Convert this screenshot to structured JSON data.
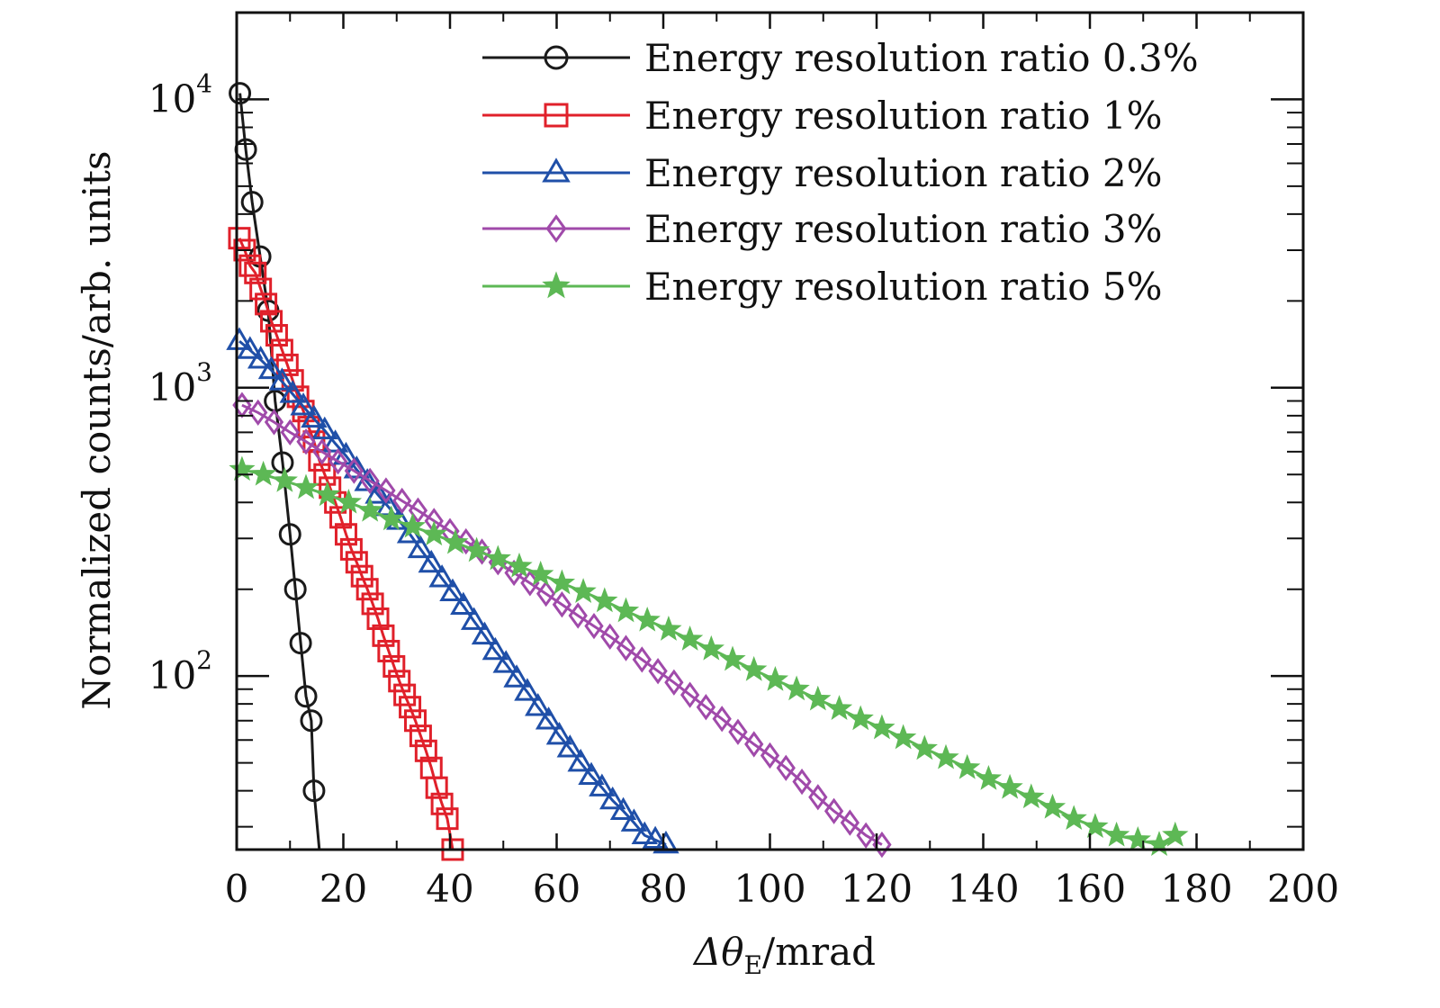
{
  "chart_data": {
    "type": "line",
    "xlabel": "Δθ",
    "xlabel_sub": "E",
    "xlabel_unit": "/mrad",
    "ylabel": "Normalized counts/arb. units",
    "xlim": [
      0,
      200
    ],
    "ylim": [
      25,
      20000
    ],
    "y_scale": "log",
    "x_ticks": [
      0,
      20,
      40,
      60,
      80,
      100,
      120,
      140,
      160,
      180,
      200
    ],
    "y_ticks": [
      {
        "value": 100,
        "base": "10",
        "exp": "2"
      },
      {
        "value": 1000,
        "base": "10",
        "exp": "3"
      },
      {
        "value": 10000,
        "base": "10",
        "exp": "4"
      }
    ],
    "grid": false,
    "legend_position": "top-right",
    "series": [
      {
        "name": "Energy resolution ratio 0.3%",
        "color": "#1a1a1a",
        "marker": "circle",
        "x": [
          0.6,
          1.7,
          2.9,
          4.4,
          5.9,
          7.2,
          8.6,
          10.0,
          11.0,
          12.0,
          13.0,
          14.0,
          14.5
        ],
        "y": [
          10500,
          6700,
          4400,
          2850,
          1850,
          900,
          550,
          310,
          200,
          130,
          85,
          70,
          40
        ],
        "tail_x": [
          14.5,
          15.5,
          200
        ],
        "tail_y": [
          40,
          25,
          25
        ]
      },
      {
        "name": "Energy resolution ratio 1%",
        "color": "#e0202a",
        "marker": "square",
        "x": [
          0.5,
          1.5,
          2.5,
          3.5,
          4.5,
          5.5,
          6.5,
          7.5,
          8.5,
          9.5,
          10.5,
          11.5,
          12.5,
          13.5,
          14.5,
          15.5,
          16.5,
          17.5,
          18.5,
          19.5,
          20.5,
          21.5,
          22.5,
          23.5,
          24.5,
          25.5,
          26.5,
          27.5,
          28.5,
          29.5,
          30.5,
          31.5,
          32.5,
          33.5,
          34.5,
          35.5,
          36.5,
          37.5,
          38.5,
          39.5,
          40.5
        ],
        "y": [
          3300,
          3000,
          2650,
          2500,
          2200,
          1950,
          1700,
          1520,
          1350,
          1200,
          1060,
          930,
          830,
          730,
          650,
          560,
          500,
          450,
          400,
          355,
          310,
          275,
          248,
          222,
          200,
          178,
          158,
          138,
          122,
          108,
          96,
          86,
          78,
          70,
          62,
          55,
          48,
          41,
          36,
          32,
          25
        ],
        "tail_x": [
          40.5,
          200
        ],
        "tail_y": [
          25,
          25
        ]
      },
      {
        "name": "Energy resolution ratio 2%",
        "color": "#1f4fa8",
        "marker": "triangle",
        "x": [
          0.5,
          2.5,
          4.5,
          6.5,
          8.5,
          10.5,
          12.5,
          14.5,
          16.5,
          18.5,
          20.5,
          22.5,
          24.5,
          26.5,
          28.5,
          30.5,
          32.5,
          34.5,
          36.5,
          38.5,
          40.5,
          42.5,
          44.5,
          46.5,
          48.5,
          50.5,
          52.5,
          54.5,
          56.5,
          58.5,
          60.5,
          62.5,
          64.5,
          66.5,
          68.5,
          70.5,
          72.5,
          74.5,
          76.5,
          78.5,
          80.5
        ],
        "y": [
          1450,
          1350,
          1250,
          1150,
          1050,
          950,
          860,
          780,
          710,
          640,
          580,
          520,
          470,
          425,
          385,
          345,
          310,
          275,
          245,
          218,
          195,
          175,
          155,
          138,
          122,
          110,
          98,
          88,
          78,
          70,
          62,
          56,
          50,
          45,
          41,
          37,
          34,
          31,
          28,
          27,
          26
        ],
        "tail_x": [
          80.5,
          200
        ],
        "tail_y": [
          25,
          25
        ]
      },
      {
        "name": "Energy resolution ratio 3%",
        "color": "#a04aaa",
        "marker": "diamond",
        "x": [
          1,
          4,
          7,
          10,
          13,
          16,
          19,
          22,
          25,
          28,
          31,
          34,
          37,
          40,
          43,
          46,
          49,
          52,
          55,
          58,
          61,
          64,
          67,
          70,
          73,
          76,
          79,
          82,
          85,
          88,
          91,
          94,
          97,
          100,
          103,
          106,
          109,
          112,
          115,
          118,
          121
        ],
        "y": [
          870,
          820,
          760,
          700,
          650,
          600,
          555,
          515,
          475,
          440,
          405,
          375,
          345,
          318,
          293,
          270,
          248,
          228,
          210,
          193,
          177,
          162,
          149,
          137,
          125,
          114,
          104,
          95,
          86,
          78,
          71,
          64,
          58,
          53,
          48,
          43,
          38,
          34,
          31,
          28,
          26
        ],
        "tail_x": [
          121,
          200
        ],
        "tail_y": [
          25,
          25
        ]
      },
      {
        "name": "Energy resolution ratio 5%",
        "color": "#5db855",
        "marker": "star",
        "x": [
          1,
          5,
          9,
          13,
          17,
          21,
          25,
          29,
          33,
          37,
          41,
          45,
          49,
          53,
          57,
          61,
          65,
          69,
          73,
          77,
          81,
          85,
          89,
          93,
          97,
          101,
          105,
          109,
          113,
          117,
          121,
          125,
          129,
          133,
          137,
          141,
          145,
          149,
          153,
          157,
          161,
          165,
          169,
          173,
          176
        ],
        "y": [
          520,
          500,
          475,
          450,
          425,
          400,
          375,
          350,
          330,
          310,
          290,
          272,
          255,
          240,
          225,
          210,
          196,
          182,
          168,
          156,
          145,
          134,
          124,
          114,
          105,
          97,
          90,
          83,
          77,
          71,
          66,
          61,
          56,
          52,
          48,
          44,
          41,
          38,
          35,
          32,
          30,
          28,
          27,
          26,
          28
        ],
        "tail_x": [
          176,
          200
        ],
        "tail_y": [
          25,
          25
        ]
      }
    ]
  }
}
